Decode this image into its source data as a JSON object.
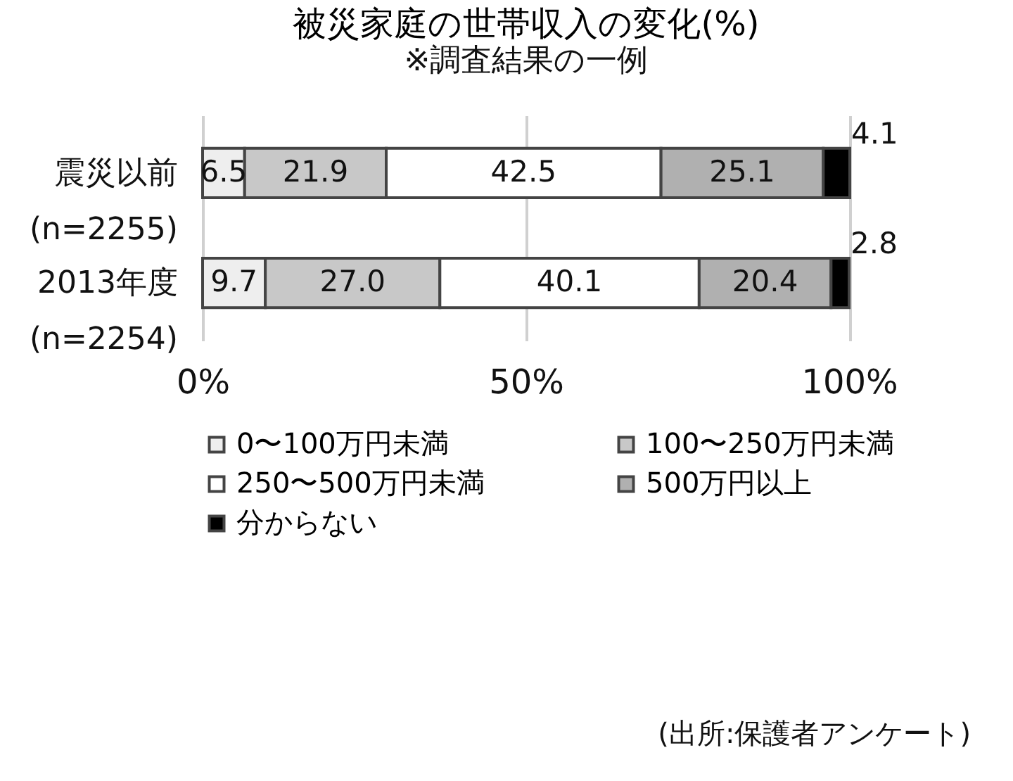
{
  "chart_data": {
    "type": "bar",
    "orientation": "horizontal",
    "stacked": true,
    "title": "被災家庭の世帯収入の変化(%)",
    "subtitle": "※調査結果の一例",
    "categories": [
      "震災以前\n(n=2255)",
      "2013年度\n(n=2254)"
    ],
    "series": [
      {
        "name": "0〜100万円未満",
        "color": "#eeeeee",
        "values": [
          6.5,
          9.7
        ],
        "value_labels": [
          "6.5",
          "9.7"
        ]
      },
      {
        "name": "100〜250万円未満",
        "color": "#c8c8c8",
        "values": [
          21.9,
          27.0
        ],
        "value_labels": [
          "21.9",
          "27.0"
        ]
      },
      {
        "name": "250〜500万円未満",
        "color": "#ffffff",
        "values": [
          42.5,
          40.1
        ],
        "value_labels": [
          "42.5",
          "40.1"
        ]
      },
      {
        "name": "500万円以上",
        "color": "#b0b0b0",
        "values": [
          25.1,
          20.4
        ],
        "value_labels": [
          "25.1",
          "20.4"
        ]
      },
      {
        "name": "分からない",
        "color": "#000000",
        "values": [
          4.1,
          2.8
        ],
        "value_labels": [
          "4.1",
          "2.8"
        ]
      }
    ],
    "xlim": [
      0,
      100.1
    ],
    "xticks": [
      {
        "value": 0,
        "label": "0%"
      },
      {
        "value": 50,
        "label": "50%"
      },
      {
        "value": 100,
        "label": "100%"
      }
    ],
    "grid": "x",
    "legend": "bottom",
    "annotations": [
      "(出所:保護者アンケート)"
    ]
  }
}
